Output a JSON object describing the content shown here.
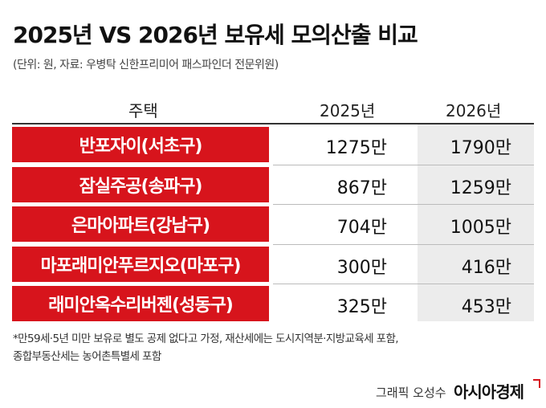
{
  "header": {
    "title": "2025년 VS 2026년 보유세 모의산출 비교",
    "subtitle": "(단위: 원, 자료: 우병탁 신한프리미어 패스파인더 전문위원)"
  },
  "table": {
    "columns": [
      "주택",
      "2025년",
      "2026년"
    ],
    "rows": [
      [
        "반포자이(서초구)",
        "1275만",
        "1790만"
      ],
      [
        "잠실주공(송파구)",
        "867만",
        "1259만"
      ],
      [
        "은마아파트(강남구)",
        "704만",
        "1005만"
      ],
      [
        "마포래미안푸르지오(마포구)",
        "300만",
        "416만"
      ],
      [
        "래미안옥수리버젠(성동구)",
        "325만",
        "453만"
      ]
    ]
  },
  "footnote": [
    "*만59세·5년 미만 보유로 별도 공제 없다고 가정, 재산세에는 도시지역분·지방교육세 포함,",
    "종합부동산세는 농어촌특별세 포함"
  ],
  "credit": {
    "author": "그래픽 오성수",
    "brand": "아시아경제"
  }
}
